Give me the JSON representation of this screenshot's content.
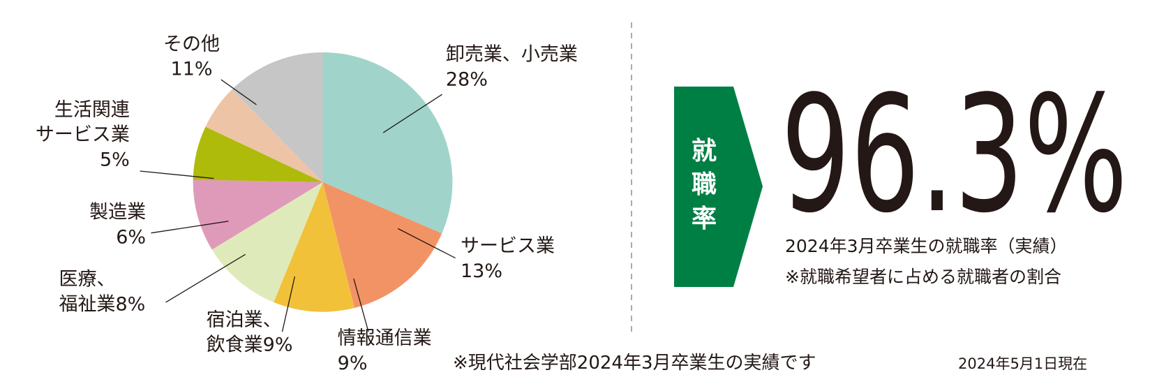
{
  "chart_data": {
    "type": "pie",
    "categories": [
      [
        "卸売業、小売業"
      ],
      [
        "サービス業"
      ],
      [
        "情報通信業"
      ],
      [
        "宿泊業、",
        "飲食業"
      ],
      [
        "医療、",
        "福祉業"
      ],
      [
        "製造業"
      ],
      [
        "生活関連",
        "サービス業"
      ],
      [
        "その他"
      ]
    ],
    "values": [
      28,
      13,
      9,
      9,
      8,
      6,
      5,
      11
    ],
    "value_labels": [
      "28%",
      "13%",
      "9%",
      "9%",
      "8%",
      "6%",
      "5%",
      "11%"
    ],
    "colors": [
      "#a0d4cb",
      "#f29366",
      "#f2c13a",
      "#dfeabb",
      "#df9ab9",
      "#aebb0a",
      "#eec4a7",
      "#c6c6c6"
    ]
  },
  "stat": {
    "badge": [
      "就",
      "職",
      "率"
    ],
    "value": "96.3%",
    "captions": [
      "2024年3月卒業生の就職率（実績）",
      "※就職希望者に占める就職者の割合"
    ]
  },
  "footnote": "※現代社会学部2024年3月卒業生の実績です",
  "as_of": "2024年5月1日現在"
}
